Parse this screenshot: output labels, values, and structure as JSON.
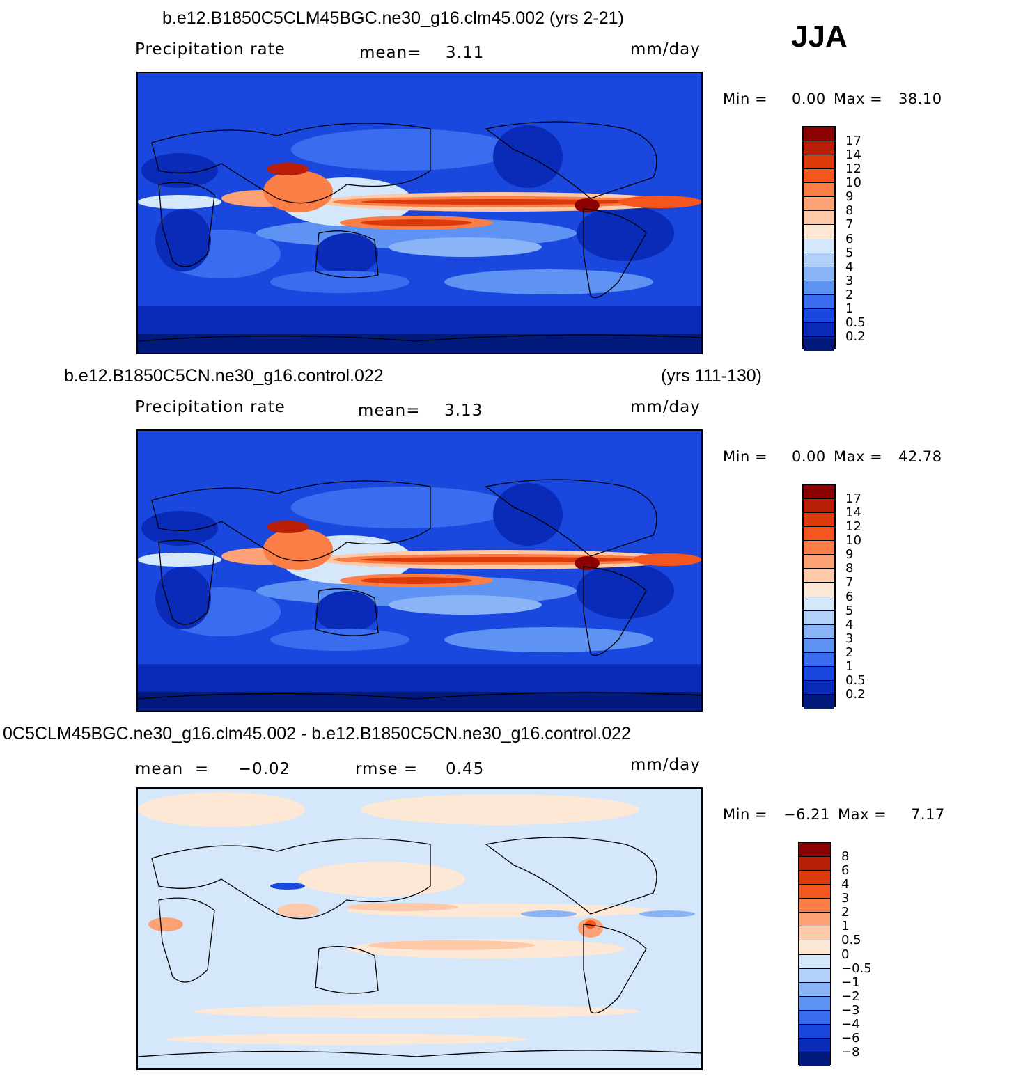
{
  "season": "JJA",
  "panels": [
    {
      "title": "b.e12.B1850C5CLM45BGC.ne30_g16.clm45.002 (yrs 2-21)",
      "title_right": "",
      "left_label": "Precipitation  rate",
      "mid_label": "mean=",
      "mid_value": "3.11",
      "units": "mm/day",
      "min_label": "Min  =",
      "min_value": "0.00",
      "max_label": "Max  =",
      "max_value": "38.10",
      "colorbar": {
        "labels": [
          "17",
          "14",
          "12",
          "10",
          "9",
          "8",
          "7",
          "6",
          "5",
          "4",
          "3",
          "2",
          "1",
          "0.5",
          "0.2"
        ],
        "colors": [
          "#8b0000",
          "#b81d05",
          "#dd3a0c",
          "#f4561d",
          "#fa7e45",
          "#fca276",
          "#fdc9a8",
          "#fde8d6",
          "#d4e7fb",
          "#b3d1f8",
          "#8ab4f6",
          "#5e92f3",
          "#3a6cf0",
          "#1a48de",
          "#0a2ab8",
          "#031a7d"
        ]
      }
    },
    {
      "title": "b.e12.B1850C5CN.ne30_g16.control.022",
      "title_right": "(yrs 111-130)",
      "left_label": "Precipitation  rate",
      "mid_label": "mean=",
      "mid_value": "3.13",
      "units": "mm/day",
      "min_label": "Min  =",
      "min_value": "0.00",
      "max_label": "Max  =",
      "max_value": "42.78",
      "colorbar": {
        "labels": [
          "17",
          "14",
          "12",
          "10",
          "9",
          "8",
          "7",
          "6",
          "5",
          "4",
          "3",
          "2",
          "1",
          "0.5",
          "0.2"
        ],
        "colors": [
          "#8b0000",
          "#b81d05",
          "#dd3a0c",
          "#f4561d",
          "#fa7e45",
          "#fca276",
          "#fdc9a8",
          "#fde8d6",
          "#d4e7fb",
          "#b3d1f8",
          "#8ab4f6",
          "#5e92f3",
          "#3a6cf0",
          "#1a48de",
          "#0a2ab8",
          "#031a7d"
        ]
      }
    },
    {
      "title": "0C5CLM45BGC.ne30_g16.clm45.002 - b.e12.B1850C5CN.ne30_g16.control.022",
      "title_right": "",
      "left_label": "mean  =     −0.02",
      "mid_label": "rmse  =",
      "mid_value": "0.45",
      "units": "mm/day",
      "min_label": "Min  =",
      "min_value": "−6.21",
      "max_label": "Max  =",
      "max_value": "7.17",
      "colorbar": {
        "labels": [
          "8",
          "6",
          "4",
          "3",
          "2",
          "1",
          "0.5",
          "0",
          "−0.5",
          "−1",
          "−2",
          "−3",
          "−4",
          "−6",
          "−8"
        ],
        "colors": [
          "#8b0000",
          "#b81d05",
          "#dd3a0c",
          "#f4561d",
          "#fa7e45",
          "#fca276",
          "#fdc9a8",
          "#fde8d6",
          "#d4e7fb",
          "#b3d1f8",
          "#8ab4f6",
          "#5e92f3",
          "#3a6cf0",
          "#1a48de",
          "#0a2ab8",
          "#031a7d"
        ]
      }
    }
  ]
}
